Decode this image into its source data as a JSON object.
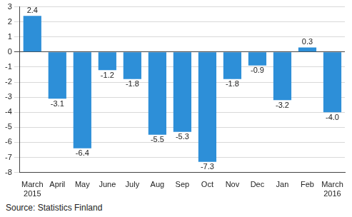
{
  "chart_data": {
    "type": "bar",
    "categories": [
      "March 2015",
      "April",
      "May",
      "June",
      "July",
      "Aug",
      "Sep",
      "Oct",
      "Nov",
      "Dec",
      "Jan",
      "Feb",
      "March 2016"
    ],
    "values": [
      2.4,
      -3.1,
      -6.4,
      -1.2,
      -1.8,
      -5.5,
      -5.3,
      -7.3,
      -1.8,
      -0.9,
      -3.2,
      0.3,
      -4.0
    ],
    "value_labels": [
      "2.4",
      "-3.1",
      "-6.4",
      "-1.2",
      "-1.8",
      "-5.5",
      "-5.3",
      "-7.3",
      "-1.8",
      "-0.9",
      "-3.2",
      "0.3",
      "-4.0"
    ],
    "color": "#2d8fd8",
    "ylim": [
      -8,
      3
    ],
    "yticks": [
      -8,
      -7,
      -6,
      -5,
      -4,
      -3,
      -2,
      -1,
      0,
      1,
      2,
      3
    ],
    "grid": true,
    "data_labels": true,
    "source": "Source: Statistics Finland"
  }
}
